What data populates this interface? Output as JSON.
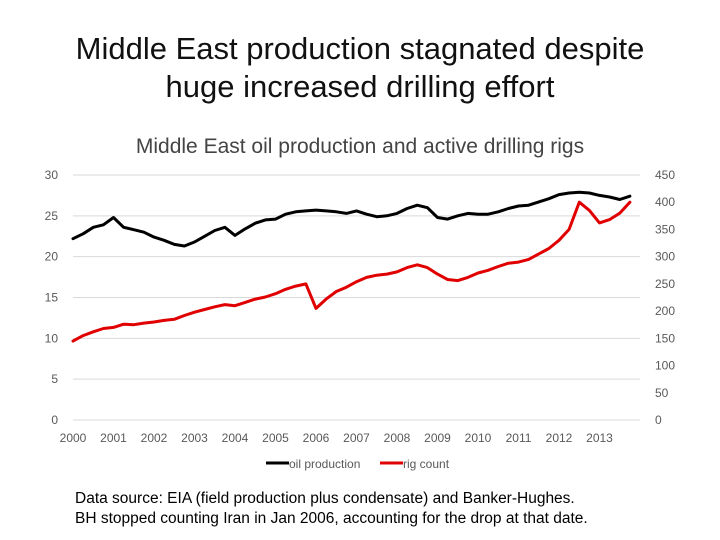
{
  "slide": {
    "title_line1": "Middle East production stagnated despite",
    "title_line2": "huge increased drilling effort"
  },
  "footnote": {
    "line1": "Data source: EIA (field production plus condensate) and Banker-Hughes.",
    "line2": "BH stopped counting Iran in Jan 2006, accounting for the drop at that date."
  },
  "chart_data": {
    "type": "line",
    "title": "Middle East oil production and active drilling rigs",
    "categories": [
      "2000",
      "2001",
      "2002",
      "2003",
      "2004",
      "2005",
      "2006",
      "2007",
      "2008",
      "2009",
      "2010",
      "2011",
      "2012",
      "2013"
    ],
    "y_left": {
      "min": 0,
      "max": 30,
      "ticks": [
        "0",
        "5",
        "10",
        "15",
        "20",
        "25",
        "30"
      ]
    },
    "y_right": {
      "min": 0,
      "max": 450,
      "ticks": [
        "0",
        "50",
        "100",
        "150",
        "200",
        "250",
        "300",
        "350",
        "400",
        "450"
      ]
    },
    "grid": true,
    "legend_position": "bottom",
    "series": [
      {
        "name": "oil production",
        "axis": "left",
        "color": "#000000",
        "x": [
          2000.0,
          2000.25,
          2000.5,
          2000.75,
          2001.0,
          2001.25,
          2001.5,
          2001.75,
          2002.0,
          2002.25,
          2002.5,
          2002.75,
          2003.0,
          2003.25,
          2003.5,
          2003.75,
          2004.0,
          2004.25,
          2004.5,
          2004.75,
          2005.0,
          2005.25,
          2005.5,
          2005.75,
          2006.0,
          2006.25,
          2006.5,
          2006.75,
          2007.0,
          2007.25,
          2007.5,
          2007.75,
          2008.0,
          2008.25,
          2008.5,
          2008.75,
          2009.0,
          2009.25,
          2009.5,
          2009.75,
          2010.0,
          2010.25,
          2010.5,
          2010.75,
          2011.0,
          2011.25,
          2011.5,
          2011.75,
          2012.0,
          2012.25,
          2012.5,
          2012.75,
          2013.0,
          2013.25,
          2013.5,
          2013.75
        ],
        "values": [
          22.2,
          22.8,
          23.6,
          23.9,
          24.8,
          23.6,
          23.3,
          23.0,
          22.4,
          22.0,
          21.5,
          21.3,
          21.8,
          22.5,
          23.2,
          23.6,
          22.6,
          23.4,
          24.1,
          24.5,
          24.6,
          25.2,
          25.5,
          25.6,
          25.7,
          25.6,
          25.5,
          25.3,
          25.6,
          25.2,
          24.9,
          25.0,
          25.3,
          25.9,
          26.3,
          26.0,
          24.8,
          24.6,
          25.0,
          25.3,
          25.2,
          25.2,
          25.5,
          25.9,
          26.2,
          26.3,
          26.7,
          27.1,
          27.6,
          27.8,
          27.9,
          27.8,
          27.5,
          27.3,
          27.0,
          27.4
        ]
      },
      {
        "name": "rig count",
        "axis": "right",
        "color": "#e00000",
        "x": [
          2000.0,
          2000.25,
          2000.5,
          2000.75,
          2001.0,
          2001.25,
          2001.5,
          2001.75,
          2002.0,
          2002.25,
          2002.5,
          2002.75,
          2003.0,
          2003.25,
          2003.5,
          2003.75,
          2004.0,
          2004.25,
          2004.5,
          2004.75,
          2005.0,
          2005.25,
          2005.5,
          2005.75,
          2006.0,
          2006.25,
          2006.5,
          2006.75,
          2007.0,
          2007.25,
          2007.5,
          2007.75,
          2008.0,
          2008.25,
          2008.5,
          2008.75,
          2009.0,
          2009.25,
          2009.5,
          2009.75,
          2010.0,
          2010.25,
          2010.5,
          2010.75,
          2011.0,
          2011.25,
          2011.5,
          2011.75,
          2012.0,
          2012.25,
          2012.5,
          2012.75,
          2013.0,
          2013.25,
          2013.5,
          2013.75
        ],
        "values": [
          145,
          155,
          162,
          168,
          170,
          176,
          175,
          178,
          180,
          183,
          185,
          192,
          198,
          203,
          208,
          212,
          210,
          216,
          222,
          226,
          232,
          240,
          246,
          250,
          205,
          222,
          236,
          244,
          254,
          262,
          266,
          268,
          272,
          280,
          285,
          280,
          268,
          258,
          256,
          262,
          270,
          275,
          282,
          288,
          290,
          295,
          305,
          315,
          330,
          350,
          400,
          385,
          362,
          368,
          380,
          400
        ]
      }
    ]
  }
}
